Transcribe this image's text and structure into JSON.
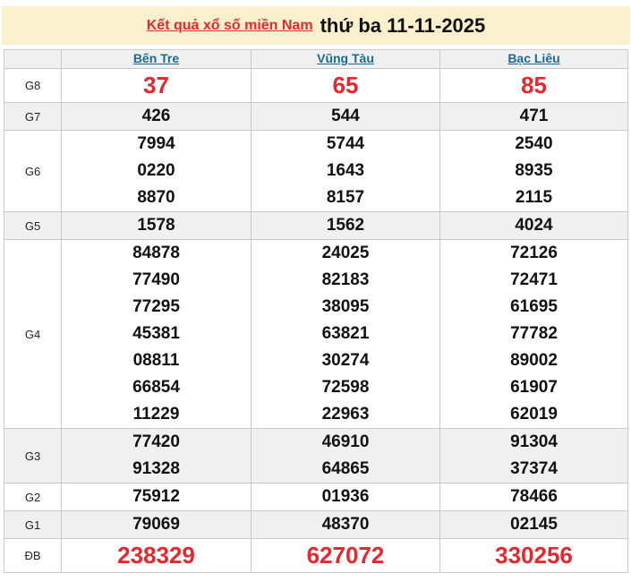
{
  "page": {
    "title_link": "Kết quả xổ số miền Nam",
    "title_date": "thứ ba 11-11-2025"
  },
  "colors": {
    "header_bg": "#fbf0cd",
    "accent_red": "#e8262d",
    "link_blue": "#17699c",
    "row_shade": "#f0f0f0",
    "border": "#c9c9c9"
  },
  "table": {
    "corner_label": "",
    "provinces": [
      "Bến Tre",
      "Vũng Tàu",
      "Bạc Liêu"
    ],
    "rows": [
      {
        "label": "G8",
        "red": true,
        "shaded": false,
        "values": [
          [
            "37"
          ],
          [
            "65"
          ],
          [
            "85"
          ]
        ]
      },
      {
        "label": "G7",
        "red": false,
        "shaded": true,
        "values": [
          [
            "426"
          ],
          [
            "544"
          ],
          [
            "471"
          ]
        ]
      },
      {
        "label": "G6",
        "red": false,
        "shaded": false,
        "values": [
          [
            "7994",
            "0220",
            "8870"
          ],
          [
            "5744",
            "1643",
            "8157"
          ],
          [
            "2540",
            "8935",
            "2115"
          ]
        ]
      },
      {
        "label": "G5",
        "red": false,
        "shaded": true,
        "values": [
          [
            "1578"
          ],
          [
            "1562"
          ],
          [
            "4024"
          ]
        ]
      },
      {
        "label": "G4",
        "red": false,
        "shaded": false,
        "values": [
          [
            "84878",
            "77490",
            "77295",
            "45381",
            "08811",
            "66854",
            "11229"
          ],
          [
            "24025",
            "82183",
            "38095",
            "63821",
            "30274",
            "72598",
            "22963"
          ],
          [
            "72126",
            "72471",
            "61695",
            "77782",
            "89002",
            "61907",
            "62019"
          ]
        ]
      },
      {
        "label": "G3",
        "red": false,
        "shaded": true,
        "values": [
          [
            "77420",
            "91328"
          ],
          [
            "46910",
            "64865"
          ],
          [
            "91304",
            "37374"
          ]
        ]
      },
      {
        "label": "G2",
        "red": false,
        "shaded": false,
        "values": [
          [
            "75912"
          ],
          [
            "01936"
          ],
          [
            "78466"
          ]
        ]
      },
      {
        "label": "G1",
        "red": false,
        "shaded": true,
        "values": [
          [
            "79069"
          ],
          [
            "48370"
          ],
          [
            "02145"
          ]
        ]
      },
      {
        "label": "ĐB",
        "red": true,
        "shaded": false,
        "values": [
          [
            "238329"
          ],
          [
            "627072"
          ],
          [
            "330256"
          ]
        ]
      }
    ]
  }
}
